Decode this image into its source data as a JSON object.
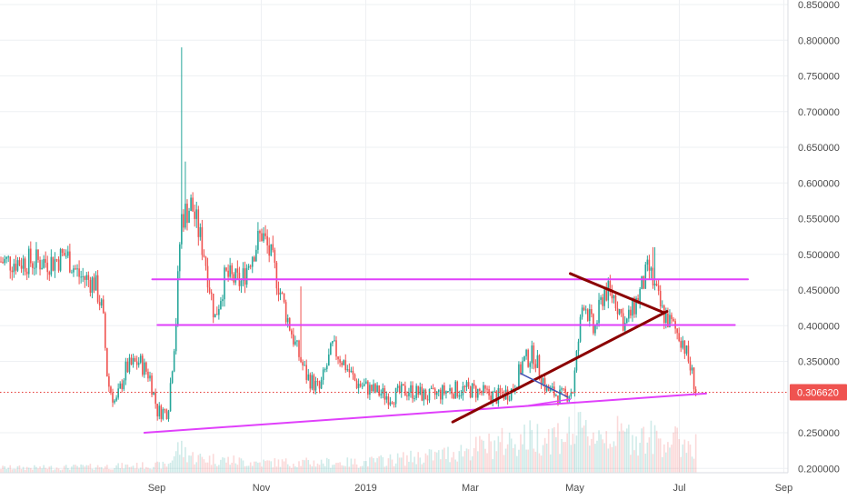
{
  "chart_data": {
    "type": "candlestick",
    "grid": true,
    "y_axis_side": "right",
    "ylim": [
      0.19,
      0.855
    ],
    "y_ticks": [
      "0.850000",
      "0.800000",
      "0.750000",
      "0.700000",
      "0.650000",
      "0.600000",
      "0.550000",
      "0.500000",
      "0.450000",
      "0.400000",
      "0.350000",
      "0.250000",
      "0.200000"
    ],
    "x_ticks": [
      {
        "label": "Sep",
        "month": 1
      },
      {
        "label": "Nov",
        "month": 3
      },
      {
        "label": "2019",
        "month": 5
      },
      {
        "label": "Mar",
        "month": 7
      },
      {
        "label": "May",
        "month": 9
      },
      {
        "label": "Jul",
        "month": 11
      },
      {
        "label": "Sep",
        "month": 13
      }
    ],
    "last_price": 0.30662,
    "last_price_label": "0.306620",
    "colors": {
      "up": "#26a69a",
      "down": "#ef5350",
      "grid": "#eef0f3",
      "price_line": "#e53935",
      "magenta": "#e040fb",
      "dark_red": "#8b0000",
      "navy": "#3f51b5"
    },
    "price_keypoints": [
      {
        "m": -0.9,
        "p": 0.49
      },
      {
        "m": -0.65,
        "p": 0.5
      },
      {
        "m": -0.4,
        "p": 0.47
      },
      {
        "m": -0.1,
        "p": 0.46
      },
      {
        "m": 0.05,
        "p": 0.42
      },
      {
        "m": 0.15,
        "p": 0.32
      },
      {
        "m": 0.3,
        "p": 0.29
      },
      {
        "m": 0.5,
        "p": 0.34
      },
      {
        "m": 0.75,
        "p": 0.35
      },
      {
        "m": 0.95,
        "p": 0.33
      },
      {
        "m": 1.1,
        "p": 0.28
      },
      {
        "m": 1.3,
        "p": 0.28
      },
      {
        "m": 1.45,
        "p": 0.4
      },
      {
        "m": 1.55,
        "p": 0.55
      },
      {
        "m": 1.75,
        "p": 0.57
      },
      {
        "m": 2.0,
        "p": 0.5
      },
      {
        "m": 2.2,
        "p": 0.41
      },
      {
        "m": 2.4,
        "p": 0.47
      },
      {
        "m": 2.7,
        "p": 0.46
      },
      {
        "m": 2.9,
        "p": 0.5
      },
      {
        "m": 3.1,
        "p": 0.53
      },
      {
        "m": 3.3,
        "p": 0.49
      },
      {
        "m": 3.55,
        "p": 0.42
      },
      {
        "m": 3.75,
        "p": 0.37
      },
      {
        "m": 3.95,
        "p": 0.33
      },
      {
        "m": 4.2,
        "p": 0.31
      },
      {
        "m": 4.45,
        "p": 0.37
      },
      {
        "m": 4.65,
        "p": 0.35
      },
      {
        "m": 4.9,
        "p": 0.32
      },
      {
        "m": 5.2,
        "p": 0.31
      },
      {
        "m": 5.55,
        "p": 0.3
      },
      {
        "m": 5.9,
        "p": 0.31
      },
      {
        "m": 6.3,
        "p": 0.3
      },
      {
        "m": 6.7,
        "p": 0.31
      },
      {
        "m": 7.1,
        "p": 0.31
      },
      {
        "m": 7.6,
        "p": 0.3
      },
      {
        "m": 7.9,
        "p": 0.31
      },
      {
        "m": 8.1,
        "p": 0.35
      },
      {
        "m": 8.3,
        "p": 0.36
      },
      {
        "m": 8.55,
        "p": 0.31
      },
      {
        "m": 8.85,
        "p": 0.3
      },
      {
        "m": 9.05,
        "p": 0.31
      },
      {
        "m": 9.25,
        "p": 0.44
      },
      {
        "m": 9.45,
        "p": 0.39
      },
      {
        "m": 9.65,
        "p": 0.45
      },
      {
        "m": 9.85,
        "p": 0.44
      },
      {
        "m": 10.05,
        "p": 0.4
      },
      {
        "m": 10.3,
        "p": 0.44
      },
      {
        "m": 10.5,
        "p": 0.48
      },
      {
        "m": 10.75,
        "p": 0.42
      },
      {
        "m": 10.95,
        "p": 0.4
      },
      {
        "m": 11.15,
        "p": 0.38
      },
      {
        "m": 11.3,
        "p": 0.34
      },
      {
        "m": 11.42,
        "p": 0.3066
      }
    ],
    "spikes": [
      {
        "m": 1.55,
        "high": 0.79
      },
      {
        "m": 1.62,
        "high": 0.63
      },
      {
        "m": 3.85,
        "high": 0.455
      },
      {
        "m": 10.6,
        "high": 0.51
      }
    ],
    "volume_profile": [
      {
        "m": -1,
        "v": 0.1
      },
      {
        "m": 1.3,
        "v": 0.15
      },
      {
        "m": 1.5,
        "v": 0.5
      },
      {
        "m": 1.8,
        "v": 0.3
      },
      {
        "m": 3.0,
        "v": 0.2
      },
      {
        "m": 5.0,
        "v": 0.2
      },
      {
        "m": 6.5,
        "v": 0.35
      },
      {
        "m": 7.5,
        "v": 0.55
      },
      {
        "m": 8.2,
        "v": 0.7
      },
      {
        "m": 9.2,
        "v": 0.8
      },
      {
        "m": 10.5,
        "v": 0.7
      },
      {
        "m": 11.4,
        "v": 0.55
      }
    ],
    "drawings": [
      {
        "name": "resistance-line-upper",
        "color": "#e040fb",
        "width": 2,
        "m1": 1.0,
        "p1": 0.465,
        "m2": 12.4,
        "p2": 0.465
      },
      {
        "name": "resistance-line-lower",
        "color": "#e040fb",
        "width": 2,
        "m1": 1.1,
        "p1": 0.401,
        "m2": 12.15,
        "p2": 0.401
      },
      {
        "name": "support-trendline",
        "color": "#e040fb",
        "width": 2,
        "m1": 0.85,
        "p1": 0.25,
        "m2": 11.6,
        "p2": 0.305
      },
      {
        "name": "triangle-ascending-line",
        "color": "#8b0000",
        "width": 3,
        "m1": 6.75,
        "p1": 0.265,
        "m2": 10.85,
        "p2": 0.42
      },
      {
        "name": "triangle-descending-line",
        "color": "#8b0000",
        "width": 3,
        "m1": 9.0,
        "p1": 0.473,
        "m2": 10.8,
        "p2": 0.418
      },
      {
        "name": "small-wedge-upper",
        "color": "#3f51b5",
        "width": 1.5,
        "m1": 8.05,
        "p1": 0.333,
        "m2": 8.95,
        "p2": 0.3
      },
      {
        "name": "small-wedge-lower",
        "color": "#e040fb",
        "width": 1.5,
        "m1": 8.1,
        "p1": 0.287,
        "m2": 9.0,
        "p2": 0.297
      }
    ]
  }
}
